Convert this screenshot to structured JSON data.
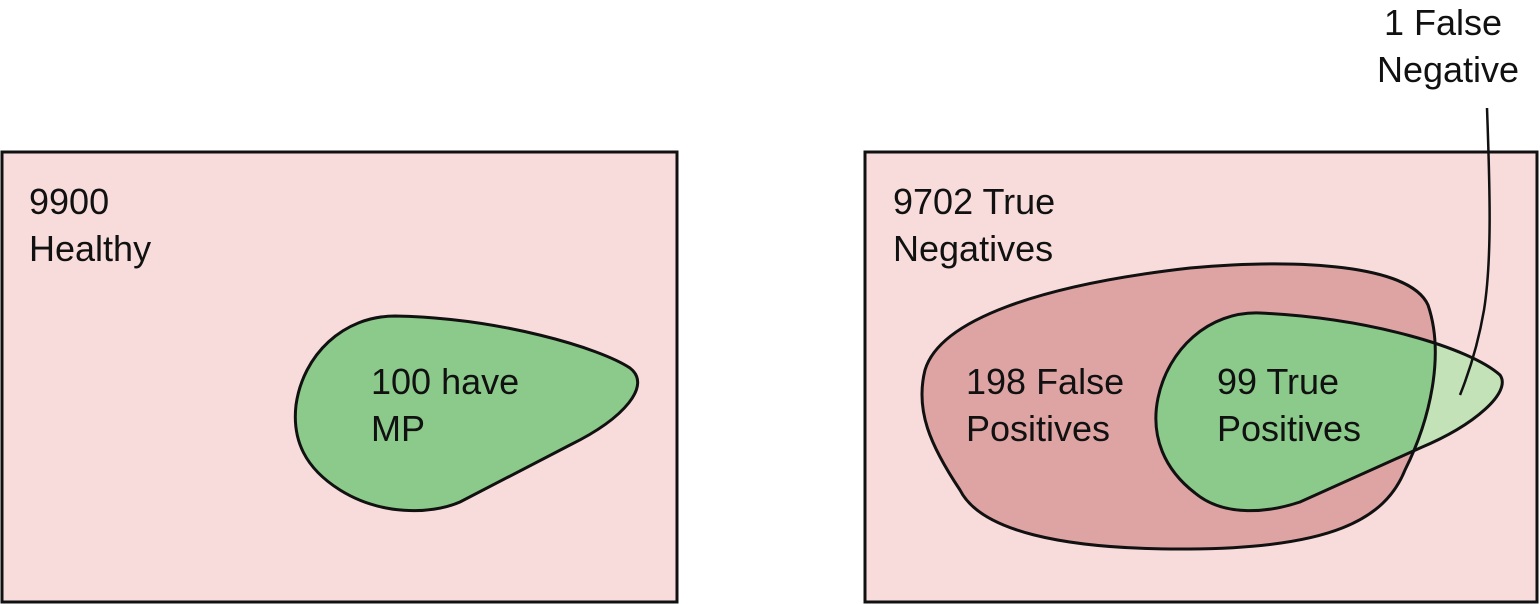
{
  "left_panel": {
    "healthy_line1": "9900",
    "healthy_line2": "Healthy",
    "mp_line1": "100 have",
    "mp_line2": "MP"
  },
  "right_panel": {
    "tn_line1": "9702 True",
    "tn_line2": "Negatives",
    "fp_line1": "198 False",
    "fp_line2": "Positives",
    "tp_line1": "99 True",
    "tp_line2": "Positives",
    "fn_line1": "1 False",
    "fn_line2": "Negative"
  },
  "colors": {
    "background_panel": "#f8dcdc",
    "mp_blob": "#8bca8a",
    "test_positive_blob": "#dea4a4",
    "false_negative_region": "#c3e2b8",
    "outline": "#111111"
  }
}
